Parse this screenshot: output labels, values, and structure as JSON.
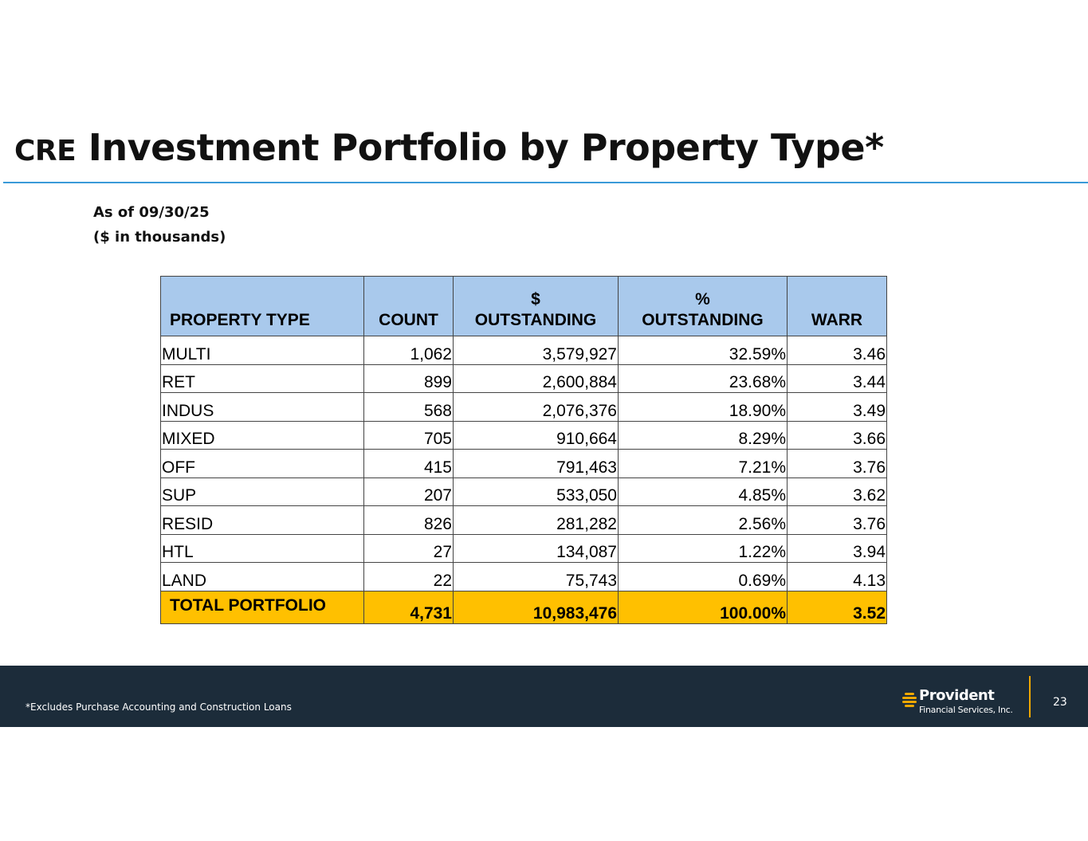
{
  "title": {
    "prefix": "CRE",
    "main": "Investment Portfolio by Property Type*"
  },
  "subtitle": {
    "line1": "As of 09/30/25",
    "line2": "($ in thousands)"
  },
  "table": {
    "headers": {
      "property_type": "PROPERTY TYPE",
      "count": "COUNT",
      "dollar_symbol": "$",
      "dollar_label": "OUTSTANDING",
      "percent_symbol": "%",
      "percent_label": "OUTSTANDING",
      "warr": "WARR"
    },
    "rows": [
      {
        "type": "MULTI",
        "count": "1,062",
        "outstanding": "3,579,927",
        "pct": "32.59%",
        "warr": "3.46"
      },
      {
        "type": "RET",
        "count": "899",
        "outstanding": "2,600,884",
        "pct": "23.68%",
        "warr": "3.44"
      },
      {
        "type": "INDUS",
        "count": "568",
        "outstanding": "2,076,376",
        "pct": "18.90%",
        "warr": "3.49"
      },
      {
        "type": "MIXED",
        "count": "705",
        "outstanding": "910,664",
        "pct": "8.29%",
        "warr": "3.66"
      },
      {
        "type": "OFF",
        "count": "415",
        "outstanding": "791,463",
        "pct": "7.21%",
        "warr": "3.76"
      },
      {
        "type": "SUP",
        "count": "207",
        "outstanding": "533,050",
        "pct": "4.85%",
        "warr": "3.62"
      },
      {
        "type": "RESID",
        "count": "826",
        "outstanding": "281,282",
        "pct": "2.56%",
        "warr": "3.76"
      },
      {
        "type": "HTL",
        "count": "27",
        "outstanding": "134,087",
        "pct": "1.22%",
        "warr": "3.94"
      },
      {
        "type": "LAND",
        "count": "22",
        "outstanding": "75,743",
        "pct": "0.69%",
        "warr": "4.13"
      }
    ],
    "total": {
      "label": "TOTAL PORTFOLIO",
      "count": "4,731",
      "outstanding": "10,983,476",
      "pct": "100.00%",
      "warr": "3.52"
    }
  },
  "footer": {
    "footnote": "*Excludes Purchase Accounting and Construction Loans",
    "logo_name": "Provident",
    "logo_sub": "Financial Services, Inc.",
    "page_number": "23"
  },
  "colors": {
    "header_fill": "#a9c9ec",
    "total_fill": "#ffc000",
    "footer_bg": "#1c2c3a",
    "rule": "#3a9ad8",
    "accent": "#f0a800"
  }
}
